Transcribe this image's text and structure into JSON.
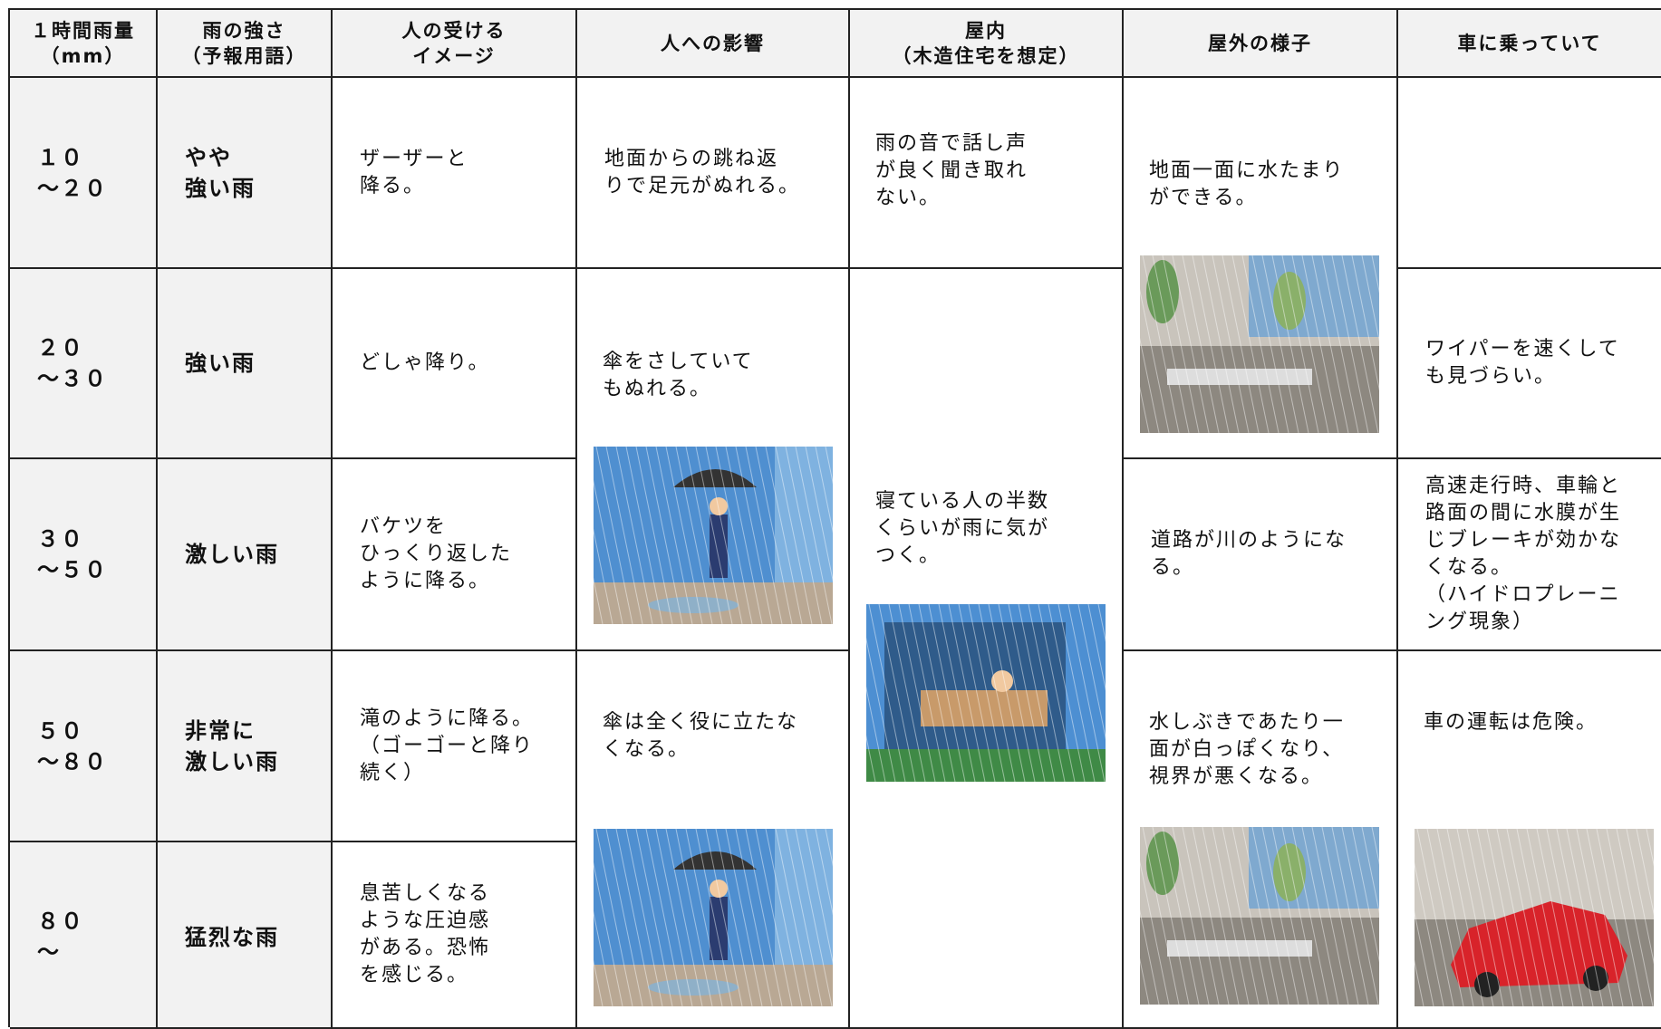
{
  "table": {
    "header": [
      "１時間雨量\n（mm）",
      "雨の強さ\n（予報用語）",
      "人の受ける\nイメージ",
      "人への影響",
      "屋内\n（木造住宅を想定）",
      "屋外の様子",
      "車に乗っていて"
    ],
    "rows": [
      {
        "rainfall": "１０\n～２０",
        "intensity": "やや\n強い雨",
        "image": "ザーザーと\n降る。",
        "effect": "地面からの跳ね返\nりで足元がぬれる。",
        "indoor": "雨の音で話し声\nが良く聞き取れ\nない。",
        "outdoor": "地面一面に水たまり\nができる。"
      },
      {
        "rainfall": "２０\n～３０",
        "intensity": "強い雨",
        "image": "どしゃ降り。",
        "effect": "傘をさしていて\nもぬれる。",
        "indoor": "寝ている人の半数\nくらいが雨に気が\nつく。",
        "car": "ワイパーを速くして\nも見づらい。"
      },
      {
        "rainfall": "３０\n～５０",
        "intensity": "激しい雨",
        "image": "バケツを\nひっくり返した\nように降る。",
        "outdoor": "道路が川のようにな\nる。",
        "car": "高速走行時、車輪と\n路面の間に水膜が生\nじブレーキが効かな\nくなる。\n（ハイドロプレーニ\nング現象）"
      },
      {
        "rainfall": "５０\n～８０",
        "intensity": "非常に\n激しい雨",
        "image": "滝のように降る。\n（ゴーゴーと降り\n続く）",
        "effect": "傘は全く役に立たな\nくなる。",
        "outdoor": "水しぶきであたり一\n面が白っぽくなり、\n視界が悪くなる。",
        "car": "車の運転は危険。"
      },
      {
        "rainfall": "８０\n～",
        "intensity": "猛烈な雨",
        "image": "息苦しくなる\nような圧迫感\nがある。恐怖\nを感じる。"
      }
    ]
  }
}
